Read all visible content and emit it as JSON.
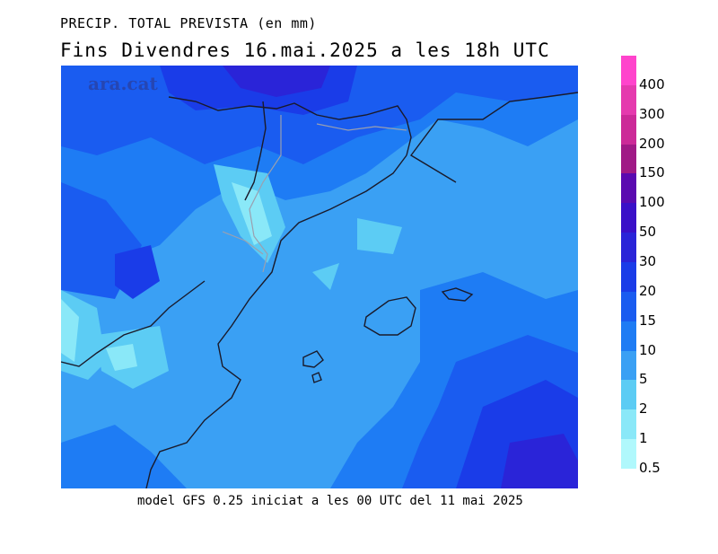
{
  "header": {
    "title_line1": "PRECIP. TOTAL PREVISTA (en mm)",
    "title_line2": "Fins Divendres 16.mai.2025 a les 18h UTC"
  },
  "footer": {
    "model_text": "model GFS 0.25 iniciat a les 00 UTC del 11 mai 2025"
  },
  "map": {
    "watermark": "ara.cat",
    "region": "Catalonia and Balearic Islands"
  },
  "legend": {
    "items": [
      {
        "label": "400",
        "color": "#ff44cc"
      },
      {
        "label": "300",
        "color": "#e53aae"
      },
      {
        "label": "200",
        "color": "#cc2a98"
      },
      {
        "label": "150",
        "color": "#a01a86"
      },
      {
        "label": "100",
        "color": "#5a0ab0"
      },
      {
        "label": "50",
        "color": "#3a10c8"
      },
      {
        "label": "30",
        "color": "#2a24d8"
      },
      {
        "label": "20",
        "color": "#1a3ce8"
      },
      {
        "label": "15",
        "color": "#1a5cf0"
      },
      {
        "label": "10",
        "color": "#1e7cf4"
      },
      {
        "label": "5",
        "color": "#3aa0f4"
      },
      {
        "label": "2",
        "color": "#5cccf4"
      },
      {
        "label": "1",
        "color": "#8ae8f8"
      },
      {
        "label": "0.5",
        "color": "#b0f8fc"
      }
    ]
  }
}
